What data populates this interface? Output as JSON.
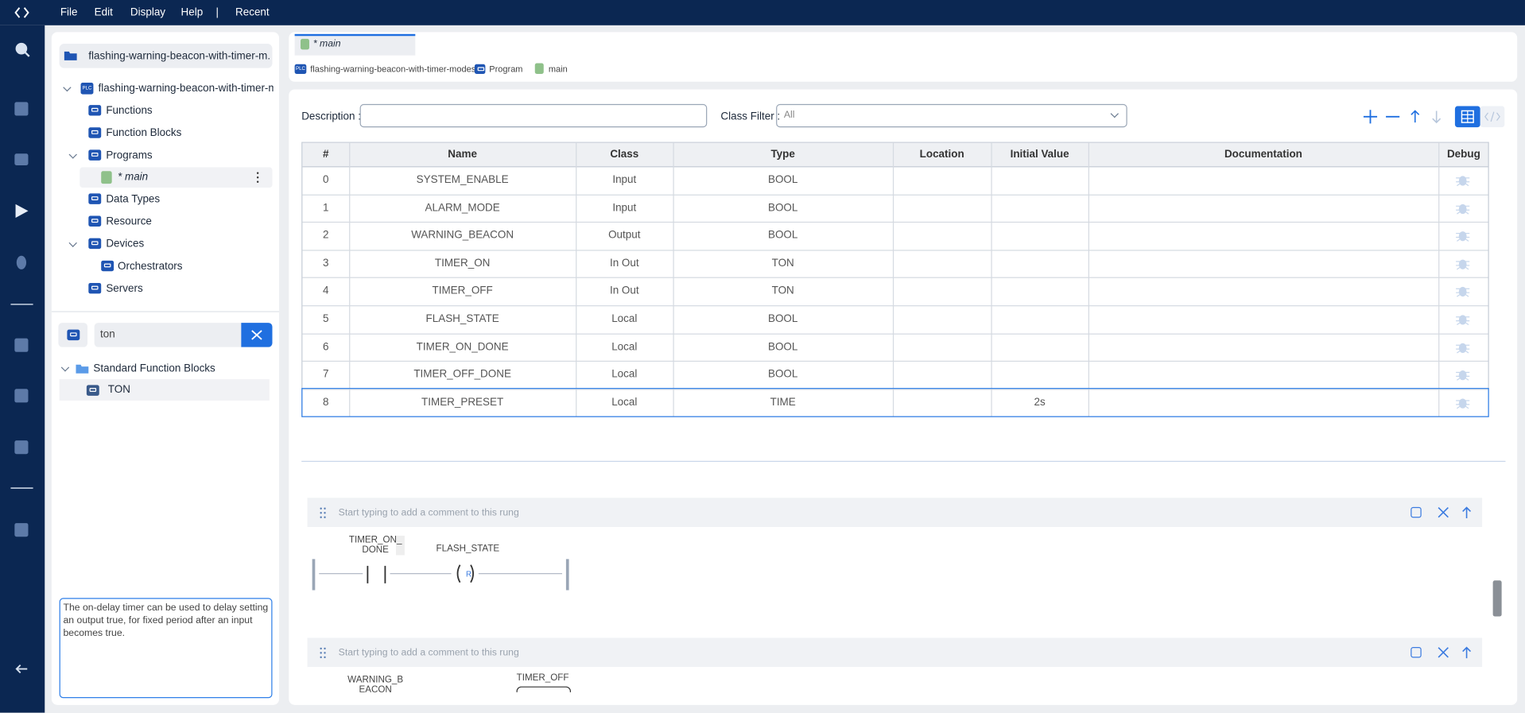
{
  "menu": {
    "items": [
      "File",
      "Edit",
      "Display",
      "Help"
    ],
    "separator": "|",
    "recent": "Recent"
  },
  "project": {
    "header": "flashing-warning-beacon-with-timer-m...",
    "root": "flashing-warning-beacon-with-timer-mo...",
    "badge": "PLC"
  },
  "tree": {
    "functions": "Functions",
    "function_blocks": "Function Blocks",
    "programs": "Programs",
    "main": "* main",
    "data_types": "Data Types",
    "resource": "Resource",
    "devices": "Devices",
    "orchestrators": "Orchestrators",
    "servers": "Servers"
  },
  "library": {
    "search": "ton",
    "group": "Standard Function Blocks",
    "item": "TON",
    "description": "The on-delay timer can be used to delay setting an output true, for fixed period after an input becomes true."
  },
  "editor": {
    "tab": "* main",
    "breadcrumb": [
      "flashing-warning-beacon-with-timer-modes",
      "Program",
      "main"
    ],
    "description_label": "Description :",
    "class_filter_label": "Class Filter :",
    "class_filter_value": "All"
  },
  "table": {
    "headers": [
      "#",
      "Name",
      "Class",
      "Type",
      "Location",
      "Initial Value",
      "Documentation",
      "Debug"
    ],
    "rows": [
      {
        "index": 0,
        "name": "SYSTEM_ENABLE",
        "class": "Input",
        "type": "BOOL"
      },
      {
        "index": 1,
        "name": "ALARM_MODE",
        "class": "Input",
        "type": "BOOL"
      },
      {
        "index": 2,
        "name": "WARNING_BEACON",
        "class": "Output",
        "type": "BOOL"
      },
      {
        "index": 3,
        "name": "TIMER_ON",
        "class": "In Out",
        "type": "TON"
      },
      {
        "index": 4,
        "name": "TIMER_OFF",
        "class": "In Out",
        "type": "TON"
      },
      {
        "index": 5,
        "name": "FLASH_STATE",
        "class": "Local",
        "type": "BOOL"
      },
      {
        "index": 6,
        "name": "TIMER_ON_DONE",
        "class": "Local",
        "type": "BOOL"
      },
      {
        "index": 7,
        "name": "TIMER_OFF_DONE",
        "class": "Local",
        "type": "BOOL"
      },
      {
        "index": 8,
        "name": "TIMER_PRESET",
        "class": "Local",
        "type": "TIME",
        "initial_value": "2s"
      }
    ]
  },
  "rungs": [
    {
      "comment_placeholder": "Start typing to add a comment to this rung",
      "contact": "TIMER_ON_DONE",
      "coil": "FLASH_STATE",
      "coil_type": "R"
    },
    {
      "comment_placeholder": "Start typing to add a comment to this rung",
      "contact": "WARNING_BEACON",
      "block": "TIMER_OFF"
    }
  ]
}
